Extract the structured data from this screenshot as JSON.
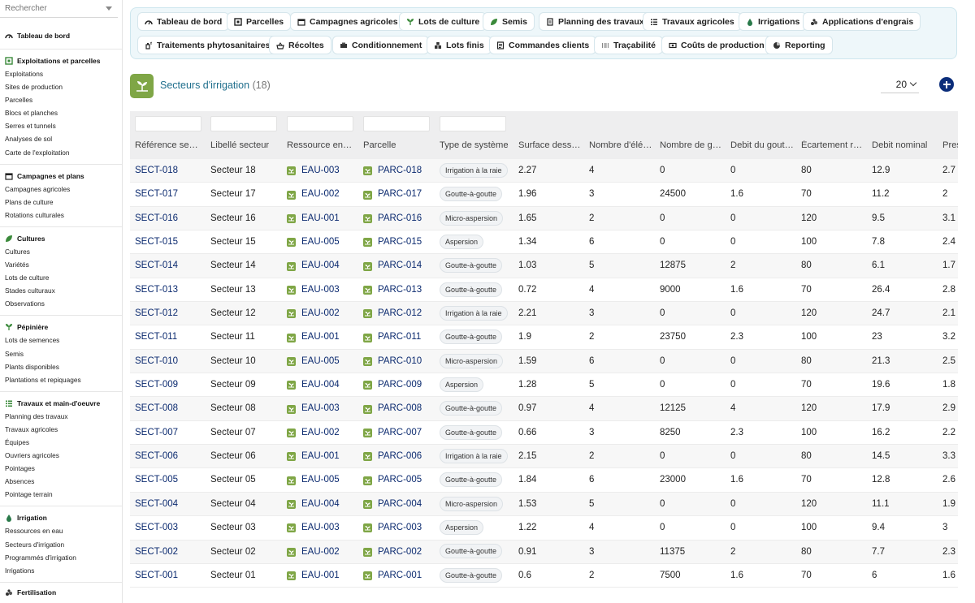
{
  "search": {
    "placeholder": "Rechercher"
  },
  "sidebar": {
    "sections": [
      {
        "title": "Tableau de bord",
        "icon": "dashboard-icon",
        "items": []
      },
      {
        "title": "Exploitations et parcelles",
        "icon": "farm-icon",
        "items": [
          "Exploitations",
          "Sites de production",
          "Parcelles",
          "Blocs et planches",
          "Serres et tunnels",
          "Analyses de sol",
          "Carte de l'exploitation"
        ]
      },
      {
        "title": "Campagnes et plans",
        "icon": "calendar-icon",
        "items": [
          "Campagnes agricoles",
          "Plans de culture",
          "Rotations culturales"
        ]
      },
      {
        "title": "Cultures",
        "icon": "leaf-icon",
        "items": [
          "Cultures",
          "Variétés",
          "Lots de culture",
          "Stades culturaux",
          "Observations"
        ]
      },
      {
        "title": "Pépinière",
        "icon": "sprout-icon",
        "items": [
          "Lots de semences",
          "Semis",
          "Plants disponibles",
          "Plantations et repiquages"
        ]
      },
      {
        "title": "Travaux et main-d'oeuvre",
        "icon": "tasks-icon",
        "items": [
          "Planning des travaux",
          "Travaux agricoles",
          "Équipes",
          "Ouvriers agricoles",
          "Pointages",
          "Absences",
          "Pointage terrain"
        ]
      },
      {
        "title": "Irrigation",
        "icon": "water-drop-icon",
        "items": [
          "Ressources en eau",
          "Secteurs d'irrigation",
          "Programmés d'irrigation",
          "Irrigations"
        ]
      },
      {
        "title": "Fertilisation",
        "icon": "fertilizer-icon",
        "items": []
      }
    ]
  },
  "topmenu": {
    "row1": [
      {
        "label": "Tableau de bord",
        "icon": "dashboard-icon"
      },
      {
        "label": "Parcelles",
        "icon": "parcel-icon"
      },
      {
        "label": "Campagnes agricoles",
        "icon": "calendar-icon"
      },
      {
        "label": "Lots de culture",
        "icon": "sprout-icon"
      },
      {
        "label": "Semis",
        "icon": "leaf-icon"
      },
      {
        "label": "Planning des travaux",
        "icon": "planning-icon"
      },
      {
        "label": "Travaux agricoles",
        "icon": "list-icon"
      },
      {
        "label": "Irrigations",
        "icon": "water-drop-icon"
      },
      {
        "label": "Applications d'engrais",
        "icon": "fertilizer-icon"
      }
    ],
    "row2": [
      {
        "label": "Traitements phytosanitaires",
        "icon": "spray-icon"
      },
      {
        "label": "Récoltes",
        "icon": "harvest-icon"
      },
      {
        "label": "Conditionnement",
        "icon": "packaging-icon"
      },
      {
        "label": "Lots finis",
        "icon": "boxes-icon"
      },
      {
        "label": "Commandes clients",
        "icon": "order-icon"
      },
      {
        "label": "Traçabilité",
        "icon": "barcode-icon"
      },
      {
        "label": "Coûts de production",
        "icon": "money-icon"
      },
      {
        "label": "Reporting",
        "icon": "chart-pie-icon"
      }
    ]
  },
  "page": {
    "title": "Secteurs d'irrigation",
    "count": "(18)",
    "page_size": "20"
  },
  "table": {
    "headers": [
      "Référence secteur",
      "Libellé secteur",
      "Ressource en eau",
      "Parcelle",
      "Type de système",
      "Surface desservie",
      "Nombre d'éléments",
      "Nombre de goutteurs",
      "Debit du goutteur",
      "Écartement rangs",
      "Debit nominal",
      "Pression"
    ],
    "rows": [
      [
        "SECT-018",
        "Secteur 18",
        "EAU-003",
        "PARC-018",
        "Irrigation à la raie",
        "2.27",
        "4",
        "0",
        "0",
        "80",
        "12.9",
        "2.7"
      ],
      [
        "SECT-017",
        "Secteur 17",
        "EAU-002",
        "PARC-017",
        "Goutte-à-goutte",
        "1.96",
        "3",
        "24500",
        "1.6",
        "70",
        "11.2",
        "2"
      ],
      [
        "SECT-016",
        "Secteur 16",
        "EAU-001",
        "PARC-016",
        "Micro-aspersion",
        "1.65",
        "2",
        "0",
        "0",
        "120",
        "9.5",
        "3.1"
      ],
      [
        "SECT-015",
        "Secteur 15",
        "EAU-005",
        "PARC-015",
        "Aspersion",
        "1.34",
        "6",
        "0",
        "0",
        "100",
        "7.8",
        "2.4"
      ],
      [
        "SECT-014",
        "Secteur 14",
        "EAU-004",
        "PARC-014",
        "Goutte-à-goutte",
        "1.03",
        "5",
        "12875",
        "2",
        "80",
        "6.1",
        "1.7"
      ],
      [
        "SECT-013",
        "Secteur 13",
        "EAU-003",
        "PARC-013",
        "Goutte-à-goutte",
        "0.72",
        "4",
        "9000",
        "1.6",
        "70",
        "26.4",
        "2.8"
      ],
      [
        "SECT-012",
        "Secteur 12",
        "EAU-002",
        "PARC-012",
        "Irrigation à la raie",
        "2.21",
        "3",
        "0",
        "0",
        "120",
        "24.7",
        "2.1"
      ],
      [
        "SECT-011",
        "Secteur 11",
        "EAU-001",
        "PARC-011",
        "Goutte-à-goutte",
        "1.9",
        "2",
        "23750",
        "2.3",
        "100",
        "23",
        "3.2"
      ],
      [
        "SECT-010",
        "Secteur 10",
        "EAU-005",
        "PARC-010",
        "Micro-aspersion",
        "1.59",
        "6",
        "0",
        "0",
        "80",
        "21.3",
        "2.5"
      ],
      [
        "SECT-009",
        "Secteur 09",
        "EAU-004",
        "PARC-009",
        "Aspersion",
        "1.28",
        "5",
        "0",
        "0",
        "70",
        "19.6",
        "1.8"
      ],
      [
        "SECT-008",
        "Secteur 08",
        "EAU-003",
        "PARC-008",
        "Goutte-à-goutte",
        "0.97",
        "4",
        "12125",
        "4",
        "120",
        "17.9",
        "2.9"
      ],
      [
        "SECT-007",
        "Secteur 07",
        "EAU-002",
        "PARC-007",
        "Goutte-à-goutte",
        "0.66",
        "3",
        "8250",
        "2.3",
        "100",
        "16.2",
        "2.2"
      ],
      [
        "SECT-006",
        "Secteur 06",
        "EAU-001",
        "PARC-006",
        "Irrigation à la raie",
        "2.15",
        "2",
        "0",
        "0",
        "80",
        "14.5",
        "3.3"
      ],
      [
        "SECT-005",
        "Secteur 05",
        "EAU-005",
        "PARC-005",
        "Goutte-à-goutte",
        "1.84",
        "6",
        "23000",
        "1.6",
        "70",
        "12.8",
        "2.6"
      ],
      [
        "SECT-004",
        "Secteur 04",
        "EAU-004",
        "PARC-004",
        "Micro-aspersion",
        "1.53",
        "5",
        "0",
        "0",
        "120",
        "11.1",
        "1.9"
      ],
      [
        "SECT-003",
        "Secteur 03",
        "EAU-003",
        "PARC-003",
        "Aspersion",
        "1.22",
        "4",
        "0",
        "0",
        "100",
        "9.4",
        "3"
      ],
      [
        "SECT-002",
        "Secteur 02",
        "EAU-002",
        "PARC-002",
        "Goutte-à-goutte",
        "0.91",
        "3",
        "11375",
        "2",
        "80",
        "7.7",
        "2.3"
      ],
      [
        "SECT-001",
        "Secteur 01",
        "EAU-001",
        "PARC-001",
        "Goutte-à-goutte",
        "0.6",
        "2",
        "7500",
        "1.6",
        "70",
        "6",
        "1.6"
      ]
    ]
  },
  "colors": {
    "accent": "#1f6e8c",
    "link": "#0b2a6f",
    "green": "#7fa646",
    "add": "#0b2d7a"
  }
}
